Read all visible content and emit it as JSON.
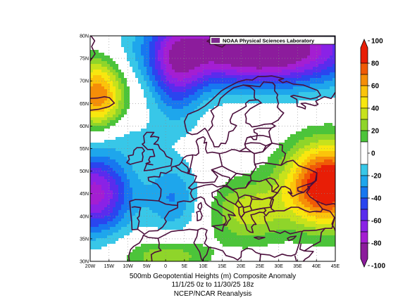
{
  "map": {
    "lab_banner": "NOAA Physical Sciences Laboratory",
    "caption": [
      "500mb Geopotential Heights (m)   Composite Anomaly",
      "11/1/25 0z  to 11/30/25 18z",
      "NCEP/NCAR Reanalysis"
    ],
    "lat_ticks": [
      "80N",
      "75N",
      "70N",
      "65N",
      "60N",
      "55N",
      "50N",
      "45N",
      "40N",
      "35N",
      "30N"
    ],
    "lon_ticks": [
      "20W",
      "15W",
      "10W",
      "5W",
      "0",
      "5E",
      "10E",
      "15E",
      "20E",
      "25E",
      "30E",
      "35E",
      "40E",
      "45E"
    ],
    "extent": {
      "lon": [
        -20,
        45
      ],
      "lat": [
        30,
        80
      ]
    },
    "graticule_step_deg": 5,
    "projection": "equirectangular",
    "coastline_color": "#4b0f3c",
    "grid_style": "dotted"
  },
  "colorbar": {
    "labels": [
      "100",
      "80",
      "60",
      "40",
      "20",
      "0",
      "-20",
      "-40",
      "-60",
      "-80",
      "-100"
    ],
    "bins": [
      {
        "range": [
          80,
          100
        ],
        "color": "#e81e06"
      },
      {
        "range": [
          70,
          80
        ],
        "color": "#f05a06"
      },
      {
        "range": [
          60,
          70
        ],
        "color": "#f58e08"
      },
      {
        "range": [
          50,
          60
        ],
        "color": "#fbc40b"
      },
      {
        "range": [
          40,
          50
        ],
        "color": "#f8e70f"
      },
      {
        "range": [
          30,
          40
        ],
        "color": "#c7e21c"
      },
      {
        "range": [
          20,
          30
        ],
        "color": "#8fd52a"
      },
      {
        "range": [
          10,
          20
        ],
        "color": "#4cc43a"
      },
      {
        "range": [
          -10,
          10
        ],
        "color": "#ffffff"
      },
      {
        "range": [
          -20,
          -10
        ],
        "color": "#38c7e8"
      },
      {
        "range": [
          -30,
          -20
        ],
        "color": "#1ea6ec"
      },
      {
        "range": [
          -40,
          -30
        ],
        "color": "#1777f0"
      },
      {
        "range": [
          -50,
          -40
        ],
        "color": "#2a45ef"
      },
      {
        "range": [
          -60,
          -50
        ],
        "color": "#5a2ced"
      },
      {
        "range": [
          -70,
          -60
        ],
        "color": "#8a22e6"
      },
      {
        "range": [
          -80,
          -70
        ],
        "color": "#a41ed2"
      },
      {
        "range": [
          -100,
          -80
        ],
        "color": "#8c1c9c"
      }
    ]
  },
  "anomaly_features": [
    {
      "kind": "positive",
      "center": [
        43,
        47
      ],
      "peak_m": 90
    },
    {
      "kind": "positive",
      "center": [
        -18,
        67
      ],
      "peak_m": 60
    },
    {
      "kind": "positive",
      "center": [
        0,
        33
      ],
      "peak_m": 20
    },
    {
      "kind": "negative",
      "center": [
        25,
        76
      ],
      "peak_m": -90
    },
    {
      "kind": "negative",
      "center": [
        -19,
        45
      ],
      "peak_m": -60
    }
  ]
}
